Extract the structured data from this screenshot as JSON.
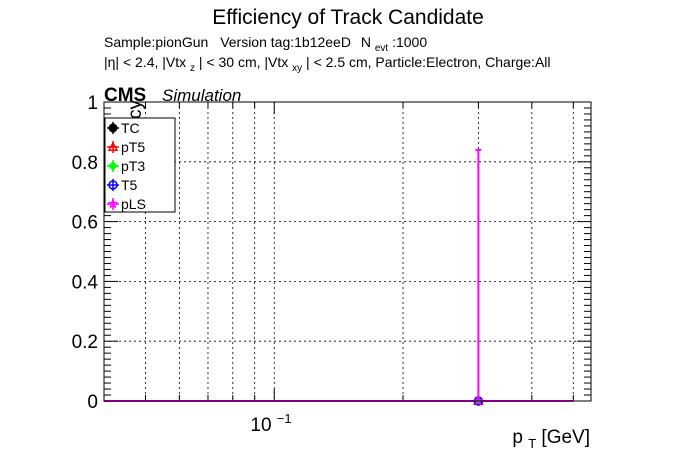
{
  "chart_data": {
    "type": "scatter",
    "title": "Efficiency of Track Candidate",
    "subtitle": {
      "line1": {
        "sample": "Sample:pionGun",
        "version": "Version tag:1b12eeD",
        "nevt_prefix": "N",
        "nevt_sub": "evt",
        "nevt_value": ":1000"
      },
      "line2": {
        "p1": "|η| < 2.4, |Vtx",
        "s1": "z",
        "p2": "| < 30 cm, |Vtx",
        "s2": "xy",
        "p3": "| < 2.5 cm, Particle:Electron, Charge:All"
      }
    },
    "cms_label": "CMS",
    "sim_label": "Simulation",
    "xlabel": {
      "base": "p",
      "sub": "T",
      "rest": " [GeV]"
    },
    "ylabel": "Efficiency",
    "x_scale": "log",
    "xlim": [
      0.04,
      0.55
    ],
    "ylim": [
      0,
      1.0
    ],
    "x_ticklabel": {
      "base": "10",
      "exp": "−1"
    },
    "y_ticks": [
      "0",
      "0.2",
      "0.4",
      "0.6",
      "0.8",
      "1"
    ],
    "grid": true,
    "legend_position": "top-left",
    "series": [
      {
        "name": "TC",
        "color": "#000000",
        "marker": "filled-circle",
        "x": [
          0.3
        ],
        "y": [
          0
        ],
        "yerr_high": [
          0
        ]
      },
      {
        "name": "pT5",
        "color": "#ff0000",
        "marker": "open-triangle",
        "x": [
          0.3
        ],
        "y": [
          0
        ],
        "yerr_high": [
          0
        ]
      },
      {
        "name": "pT3",
        "color": "#00ff00",
        "marker": "filled-diamond",
        "x": [
          0.3
        ],
        "y": [
          0
        ],
        "yerr_high": [
          0
        ]
      },
      {
        "name": "T5",
        "color": "#0000ff",
        "marker": "open-circle",
        "x": [
          0.3
        ],
        "y": [
          0
        ],
        "yerr_high": [
          0
        ]
      },
      {
        "name": "pLS",
        "color": "#ff00ff",
        "marker": "open-star",
        "x": [
          0.3
        ],
        "y": [
          0
        ],
        "yerr_high": [
          0.84
        ]
      }
    ],
    "baseline": {
      "color": "#ff00ff",
      "xlim": [
        0.04,
        0.5
      ]
    }
  }
}
